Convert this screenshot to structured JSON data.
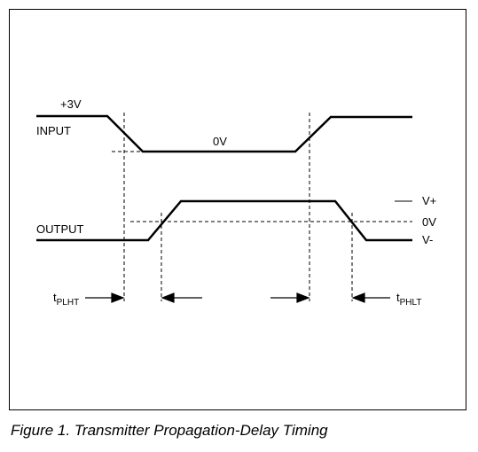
{
  "labels": {
    "plus3v": "+3V",
    "input": "INPUT",
    "zero_v_input": "0V",
    "output": "OUTPUT",
    "v_plus": "V+",
    "zero_v_output": "0V",
    "v_minus": "V-",
    "tplht_t": "t",
    "tplht_sub": "PLHT",
    "tphlt_t": "t",
    "tphlt_sub": "PHLT"
  },
  "caption": "Figure 1. Transmitter Propagation-Delay Timing"
}
